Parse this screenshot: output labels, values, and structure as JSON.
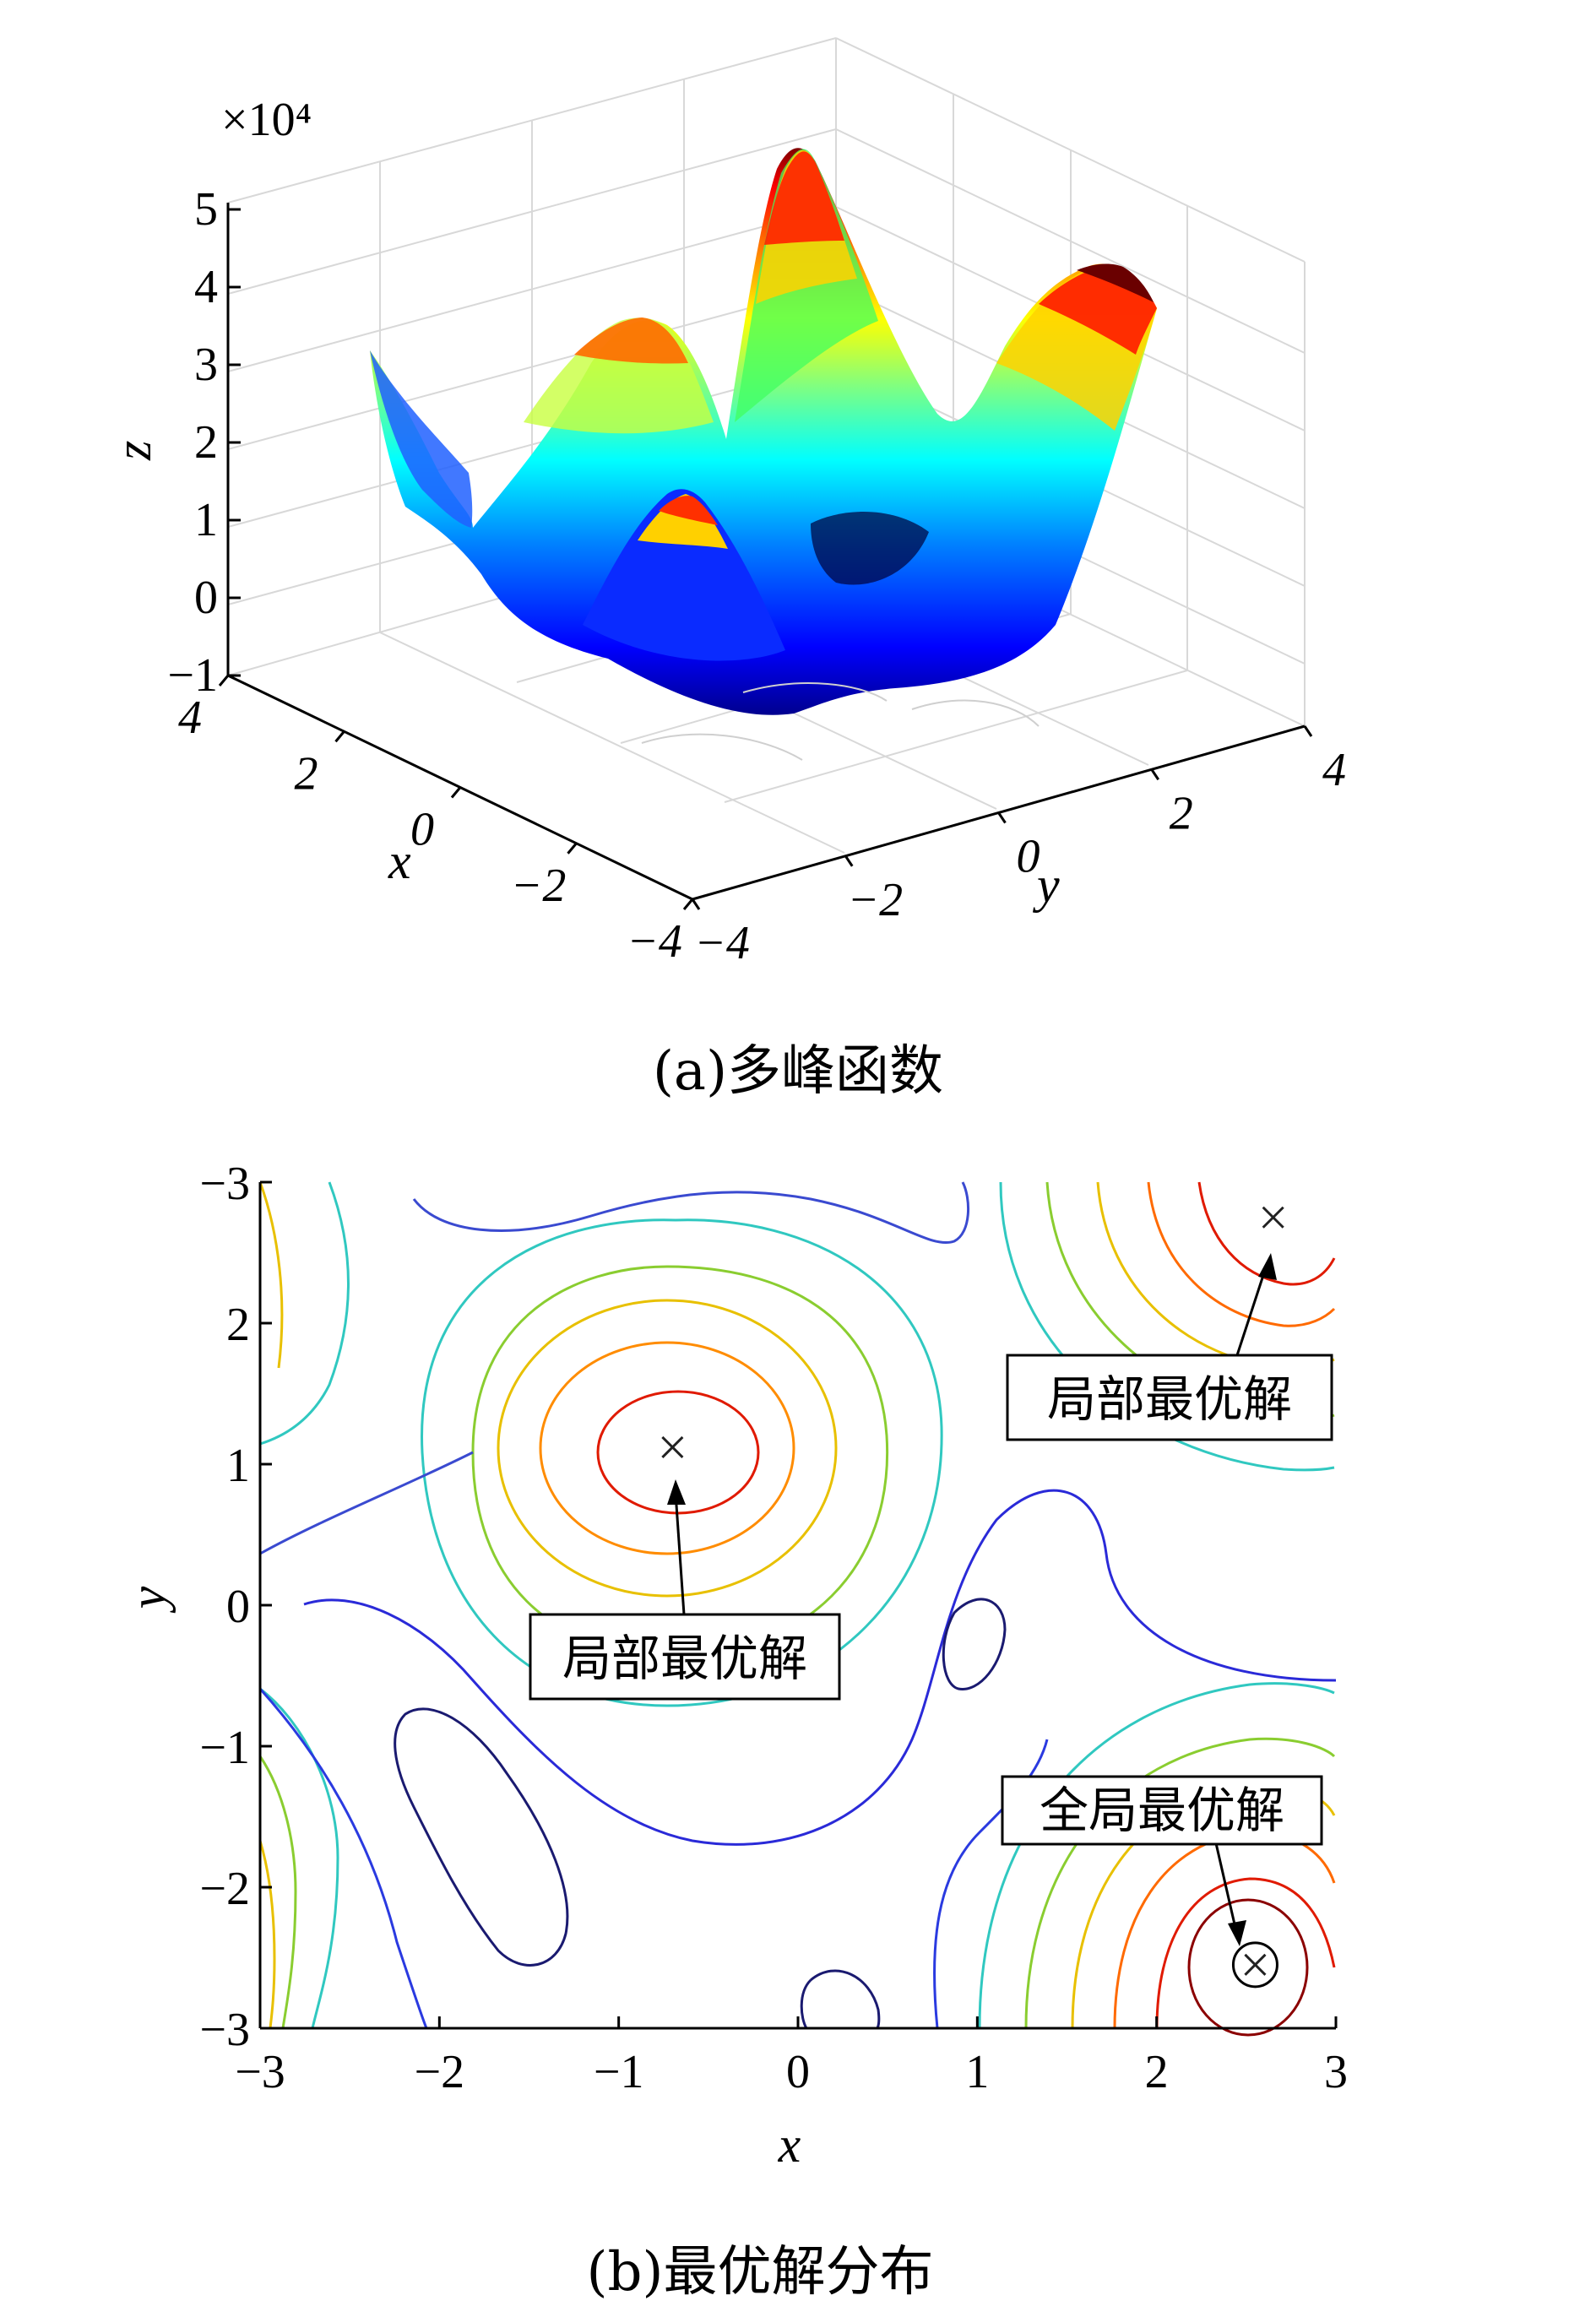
{
  "chart_data": [
    {
      "type": "surface",
      "panel_caption": "(a)多峰函数",
      "z_exponent_label": "×10⁴",
      "zlabel": "z",
      "xlabel": "x",
      "ylabel": "y",
      "z_ticks": [
        "5",
        "4",
        "3",
        "2",
        "1",
        "0",
        "−1"
      ],
      "x_ticks": [
        "4",
        "2",
        "0",
        "−2",
        "−4"
      ],
      "y_ticks": [
        "−4",
        "−2",
        "0",
        "2",
        "4"
      ],
      "xlim": [
        -4,
        4
      ],
      "ylim": [
        -4,
        4
      ],
      "zlim": [
        -1,
        5
      ],
      "grid": true,
      "colormap": "jet",
      "peaks": [
        {
          "x": 0,
          "y": 0,
          "z": 4.9
        },
        {
          "x": 3.4,
          "y": 4,
          "z": 4.5
        },
        {
          "x": 2,
          "y": -1.5,
          "z": 3.6
        },
        {
          "x": -1.3,
          "y": -1.5,
          "z": 3.1
        },
        {
          "x": 4,
          "y": -4,
          "z": 3.0
        }
      ]
    },
    {
      "type": "contour",
      "panel_caption": "(b)最优解分布",
      "xlabel": "x",
      "ylabel": "y",
      "xlim": [
        -3,
        3
      ],
      "ylim": [
        -3,
        3
      ],
      "x_ticks": [
        "−3",
        "−2",
        "−1",
        "0",
        "1",
        "2",
        "3"
      ],
      "y_ticks": [
        "−3",
        "2",
        "1",
        "0",
        "−1",
        "−2",
        "−3"
      ],
      "markers": [
        {
          "x": -0.7,
          "y": 1.12,
          "label": "局部最优解",
          "circled": false
        },
        {
          "x": 2.65,
          "y": 2.75,
          "label": "局部最优解",
          "circled": false
        },
        {
          "x": 2.55,
          "y": -2.55,
          "label": "全局最优解",
          "circled": true
        }
      ]
    }
  ],
  "colors": {
    "jet": [
      "#00008f",
      "#0000ff",
      "#0080ff",
      "#00ffff",
      "#80ff80",
      "#ffff00",
      "#ff8000",
      "#ff0000",
      "#800000"
    ]
  }
}
